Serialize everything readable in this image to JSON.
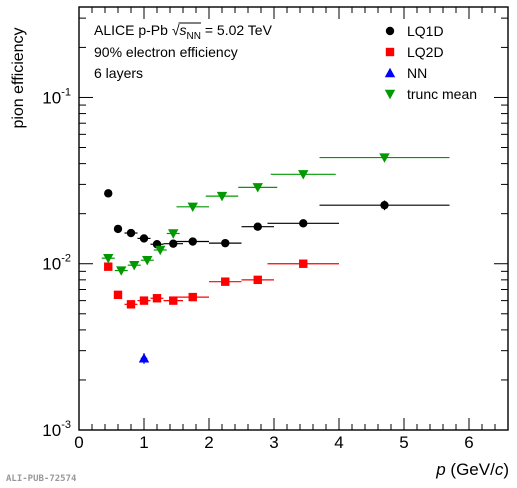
{
  "chart_data": {
    "type": "scatter",
    "title": "",
    "xlabel_var": "p",
    "xlabel_unit_pre": " (GeV/",
    "xlabel_unit_var": "c",
    "xlabel_unit_post": ")",
    "ylabel": "pion efficiency",
    "xlim": [
      0,
      6.6
    ],
    "ylim": [
      0.001,
      0.35
    ],
    "yscale": "log",
    "x_ticks": [
      0,
      1,
      2,
      3,
      4,
      5,
      6
    ],
    "x_tick_labels": [
      "0",
      "1",
      "2",
      "3",
      "4",
      "5",
      "6"
    ],
    "y_ticks": [
      {
        "base": "10",
        "exp": "-3",
        "value": 0.001
      },
      {
        "base": "10",
        "exp": "-2",
        "value": 0.01
      },
      {
        "base": "10",
        "exp": "-1",
        "value": 0.1
      }
    ],
    "annotations": {
      "line1_pre": "ALICE p-Pb ",
      "line1_s": "s",
      "line1_sub": "NN",
      "line1_post": " = 5.02 TeV",
      "line2": "90% electron efficiency",
      "line3": "6 layers"
    },
    "legend_position": "top-right",
    "series": [
      {
        "name": "LQ1D",
        "marker": "circle",
        "color": "#000000",
        "points": [
          {
            "x": 0.45,
            "xerr": 0.05,
            "y": 0.0265,
            "yerr": 0.001
          },
          {
            "x": 0.6,
            "xerr": 0.05,
            "y": 0.0162,
            "yerr": 0.0006
          },
          {
            "x": 0.8,
            "xerr": 0.1,
            "y": 0.0153,
            "yerr": 0.0005
          },
          {
            "x": 1.0,
            "xerr": 0.1,
            "y": 0.0142,
            "yerr": 0.0005
          },
          {
            "x": 1.2,
            "xerr": 0.1,
            "y": 0.0131,
            "yerr": 0.0005
          },
          {
            "x": 1.45,
            "xerr": 0.15,
            "y": 0.0132,
            "yerr": 0.0005
          },
          {
            "x": 1.75,
            "xerr": 0.25,
            "y": 0.0136,
            "yerr": 0.0005
          },
          {
            "x": 2.25,
            "xerr": 0.25,
            "y": 0.0133,
            "yerr": 0.0005
          },
          {
            "x": 2.75,
            "xerr": 0.25,
            "y": 0.0167,
            "yerr": 0.0007
          },
          {
            "x": 3.45,
            "xerr": 0.55,
            "y": 0.0175,
            "yerr": 0.0008
          },
          {
            "x": 4.7,
            "xerr": 1.0,
            "y": 0.0225,
            "yerr": 0.0015
          }
        ]
      },
      {
        "name": "LQ2D",
        "marker": "square",
        "color": "#ff0000",
        "points": [
          {
            "x": 0.45,
            "xerr": 0.05,
            "y": 0.0096,
            "yerr": 0.0004
          },
          {
            "x": 0.6,
            "xerr": 0.05,
            "y": 0.0065,
            "yerr": 0.0003
          },
          {
            "x": 0.8,
            "xerr": 0.1,
            "y": 0.0057,
            "yerr": 0.0003
          },
          {
            "x": 1.0,
            "xerr": 0.1,
            "y": 0.006,
            "yerr": 0.0003
          },
          {
            "x": 1.2,
            "xerr": 0.1,
            "y": 0.0062,
            "yerr": 0.0003
          },
          {
            "x": 1.45,
            "xerr": 0.15,
            "y": 0.006,
            "yerr": 0.0003
          },
          {
            "x": 1.75,
            "xerr": 0.25,
            "y": 0.0063,
            "yerr": 0.0003
          },
          {
            "x": 2.25,
            "xerr": 0.25,
            "y": 0.0078,
            "yerr": 0.0003
          },
          {
            "x": 2.75,
            "xerr": 0.25,
            "y": 0.008,
            "yerr": 0.0004
          },
          {
            "x": 3.45,
            "xerr": 0.55,
            "y": 0.01,
            "yerr": 0.0005
          }
        ]
      },
      {
        "name": "NN",
        "marker": "triangle-up",
        "color": "#0000ff",
        "points": [
          {
            "x": 1.0,
            "xerr": 0.05,
            "y": 0.0027,
            "yerr": 0.0002
          }
        ]
      },
      {
        "name": "trunc mean",
        "marker": "triangle-down",
        "color": "#009900",
        "points": [
          {
            "x": 0.45,
            "xerr": 0.1,
            "y": 0.0108,
            "yerr": 0.0004
          },
          {
            "x": 0.65,
            "xerr": 0.1,
            "y": 0.0091,
            "yerr": 0.0004
          },
          {
            "x": 0.85,
            "xerr": 0.1,
            "y": 0.0098,
            "yerr": 0.0004
          },
          {
            "x": 1.05,
            "xerr": 0.1,
            "y": 0.0105,
            "yerr": 0.0004
          },
          {
            "x": 1.25,
            "xerr": 0.1,
            "y": 0.0121,
            "yerr": 0.0005
          },
          {
            "x": 1.45,
            "xerr": 0.1,
            "y": 0.0152,
            "yerr": 0.0006
          },
          {
            "x": 1.75,
            "xerr": 0.25,
            "y": 0.022,
            "yerr": 0.0008
          },
          {
            "x": 2.2,
            "xerr": 0.25,
            "y": 0.0255,
            "yerr": 0.0009
          },
          {
            "x": 2.75,
            "xerr": 0.3,
            "y": 0.0288,
            "yerr": 0.001
          },
          {
            "x": 3.45,
            "xerr": 0.5,
            "y": 0.0345,
            "yerr": 0.0012
          },
          {
            "x": 4.7,
            "xerr": 1.0,
            "y": 0.0435,
            "yerr": 0.0015
          }
        ]
      }
    ]
  },
  "watermark": "ALI-PUB-72574"
}
